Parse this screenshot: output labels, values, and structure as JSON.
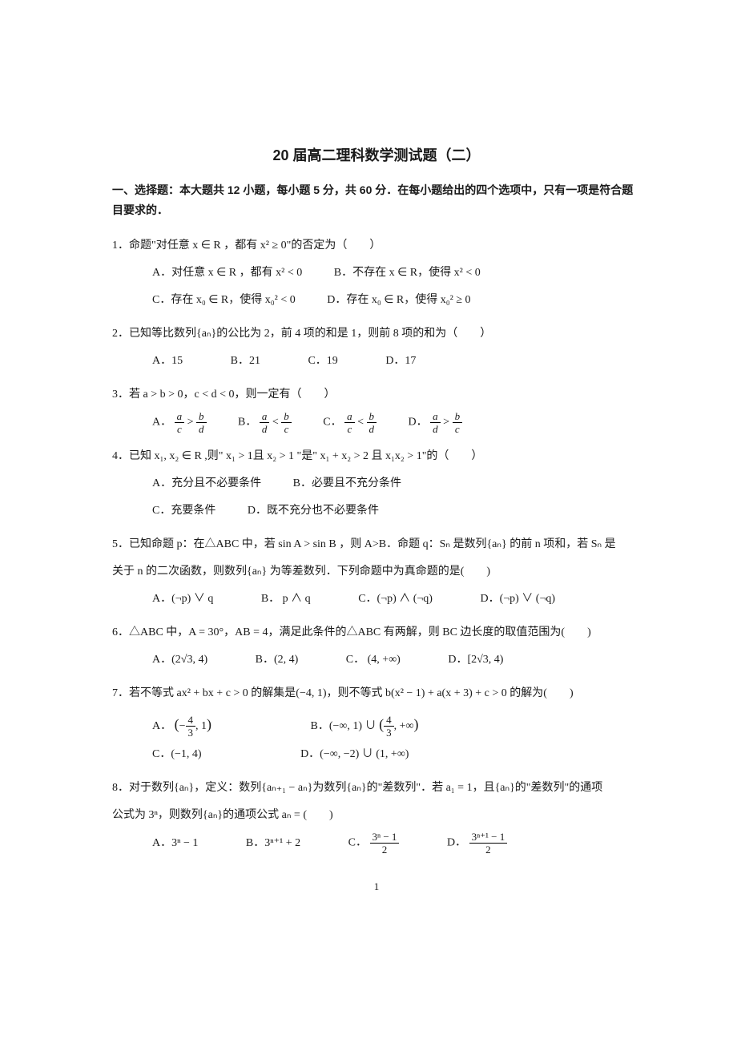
{
  "title": "20 届高二理科数学测试题（二）",
  "section_header": "一、选择题：本大题共 12 小题，每小题 5 分，共 60 分．在每小题给出的四个选项中，只有一项是符合题目要求的．",
  "page_number": "1",
  "q1": {
    "stem": "1．命题\"对任意 x ∈ R ，都有 x² ≥ 0\"的否定为（　　）",
    "optA": "A．对任意 x ∈ R ，都有 x² < 0",
    "optB": "B．不存在 x ∈ R，使得 x² < 0",
    "optC": "C．存在 x₀ ∈ R，使得 x₀² < 0",
    "optD": "D．存在 x₀ ∈ R，使得 x₀² ≥ 0"
  },
  "q2": {
    "stem": "2．已知等比数列{aₙ}的公比为 2，前 4 项的和是 1，则前 8 项的和为（　　）",
    "optA": "A．15",
    "optB": "B．21",
    "optC": "C．19",
    "optD": "D．17"
  },
  "q3": {
    "stem": "3．若 a > b > 0，c < d < 0，则一定有（　　）",
    "optA_label": "A．",
    "optB_label": "B．",
    "optC_label": "C．",
    "optD_label": "D．",
    "a": "a",
    "b": "b",
    "c": "c",
    "d": "d"
  },
  "q4": {
    "stem": "4．已知 x₁, x₂ ∈ R ,则\" x₁ > 1且 x₂ > 1 \"是\" x₁ + x₂ > 2 且 x₁x₂ > 1\"的（　　）",
    "optA": "A．充分且不必要条件",
    "optB": "B．必要且不充分条件",
    "optC": "C．充要条件",
    "optD": "D．既不充分也不必要条件"
  },
  "q5": {
    "stem1": "5．已知命题 p：在△ABC 中，若 sin A > sin B ，则 A>B．命题 q：Sₙ 是数列{aₙ} 的前 n 项和，若 Sₙ 是",
    "stem2": "关于 n 的二次函数，则数列{aₙ} 为等差数列．下列命题中为真命题的是(　　)",
    "optA": "A．(¬p) ∨ q",
    "optB": "B．  p ∧ q",
    "optC": "C．(¬p) ∧ (¬q)",
    "optD": "D．(¬p) ∨ (¬q)"
  },
  "q6": {
    "stem": "6．△ABC 中，A = 30°，AB = 4，满足此条件的△ABC 有两解，则 BC 边长度的取值范围为(　　)",
    "optA": "A．(2√3, 4)",
    "optB": "B．(2, 4)",
    "optC": "C．  (4, +∞)",
    "optD": "D．[2√3, 4)"
  },
  "q7": {
    "stem": "7．若不等式 ax² + bx + c > 0 的解集是(−4, 1)，则不等式 b(x² − 1) + a(x + 3) + c > 0 的解为(　　)",
    "optA_label": "A．",
    "optB_label": "B．(−∞, 1) ∪",
    "optB_tail": ", +∞",
    "optC": "C．(−1, 4)",
    "optD": "D．(−∞, −2) ∪ (1, +∞)",
    "four": "4",
    "three": "3",
    "one": "1"
  },
  "q8": {
    "stem1": "8．对于数列{aₙ}，定义：数列{aₙ₊₁ − aₙ}为数列{aₙ}的\"差数列\"．若 a₁ = 1，且{aₙ}的\"差数列\"的通项",
    "stem2": "公式为 3ⁿ，则数列{aₙ}的通项公式 aₙ = (　　)",
    "optA": "A．3ⁿ − 1",
    "optB": "B．3ⁿ⁺¹ + 2",
    "optC_label": "C．",
    "optD_label": "D．",
    "num_c": "3ⁿ − 1",
    "num_d": "3ⁿ⁺¹ − 1",
    "two": "2"
  }
}
